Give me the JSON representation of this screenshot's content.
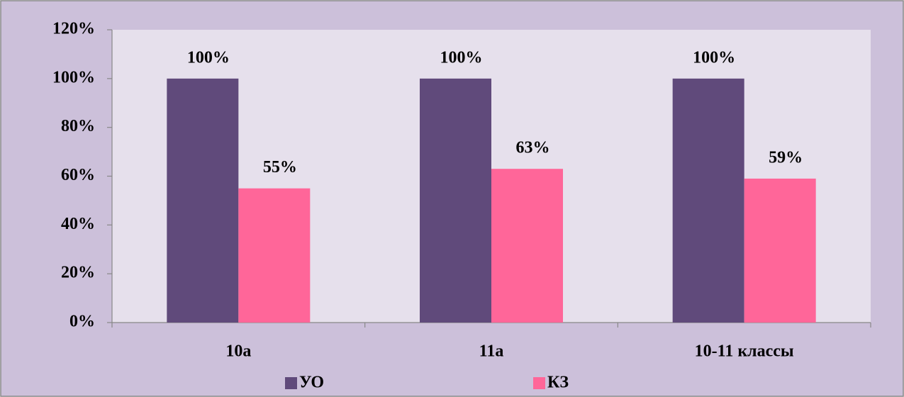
{
  "chart_data": {
    "type": "bar",
    "categories": [
      "10а",
      "11а",
      "10-11 классы"
    ],
    "series": [
      {
        "name": "УО",
        "color": "#604a7b",
        "values": [
          100,
          100,
          100
        ],
        "value_labels": [
          "100%",
          "100%",
          "100%"
        ]
      },
      {
        "name": "КЗ",
        "color": "#ff6699",
        "values": [
          55,
          63,
          59
        ],
        "value_labels": [
          "55%",
          "63%",
          "59%"
        ]
      }
    ],
    "ylim": [
      0,
      120
    ],
    "yticks": [
      {
        "value": 0,
        "label": "0%"
      },
      {
        "value": 20,
        "label": "20%"
      },
      {
        "value": 40,
        "label": "40%"
      },
      {
        "value": 60,
        "label": "60%"
      },
      {
        "value": 80,
        "label": "80%"
      },
      {
        "value": 100,
        "label": "100%"
      },
      {
        "value": 120,
        "label": "120%"
      }
    ],
    "legend": "bottom"
  }
}
